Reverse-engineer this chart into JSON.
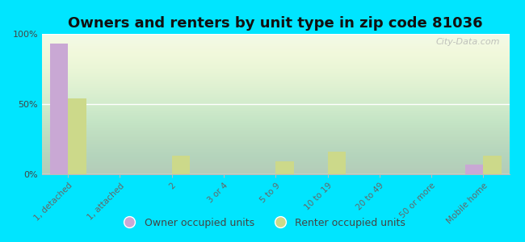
{
  "title": "Owners and renters by unit type in zip code 81036",
  "categories": [
    "1, detached",
    "1, attached",
    "2",
    "3 or 4",
    "5 to 9",
    "10 to 19",
    "20 to 49",
    "50 or more",
    "Mobile home"
  ],
  "owner_values": [
    93,
    0,
    0,
    0,
    0,
    0,
    0,
    0,
    7
  ],
  "renter_values": [
    54,
    0,
    13,
    0,
    9,
    16,
    0,
    0,
    13
  ],
  "owner_color": "#c9a8d4",
  "renter_color": "#ccd98a",
  "outer_bg": "#00e5ff",
  "plot_bg": "#f0f8e8",
  "ylim": [
    0,
    100
  ],
  "yticks": [
    0,
    50,
    100
  ],
  "ytick_labels": [
    "0%",
    "50%",
    "100%"
  ],
  "bar_width": 0.35,
  "legend_owner": "Owner occupied units",
  "legend_renter": "Renter occupied units",
  "watermark": "City-Data.com",
  "title_fontsize": 13
}
